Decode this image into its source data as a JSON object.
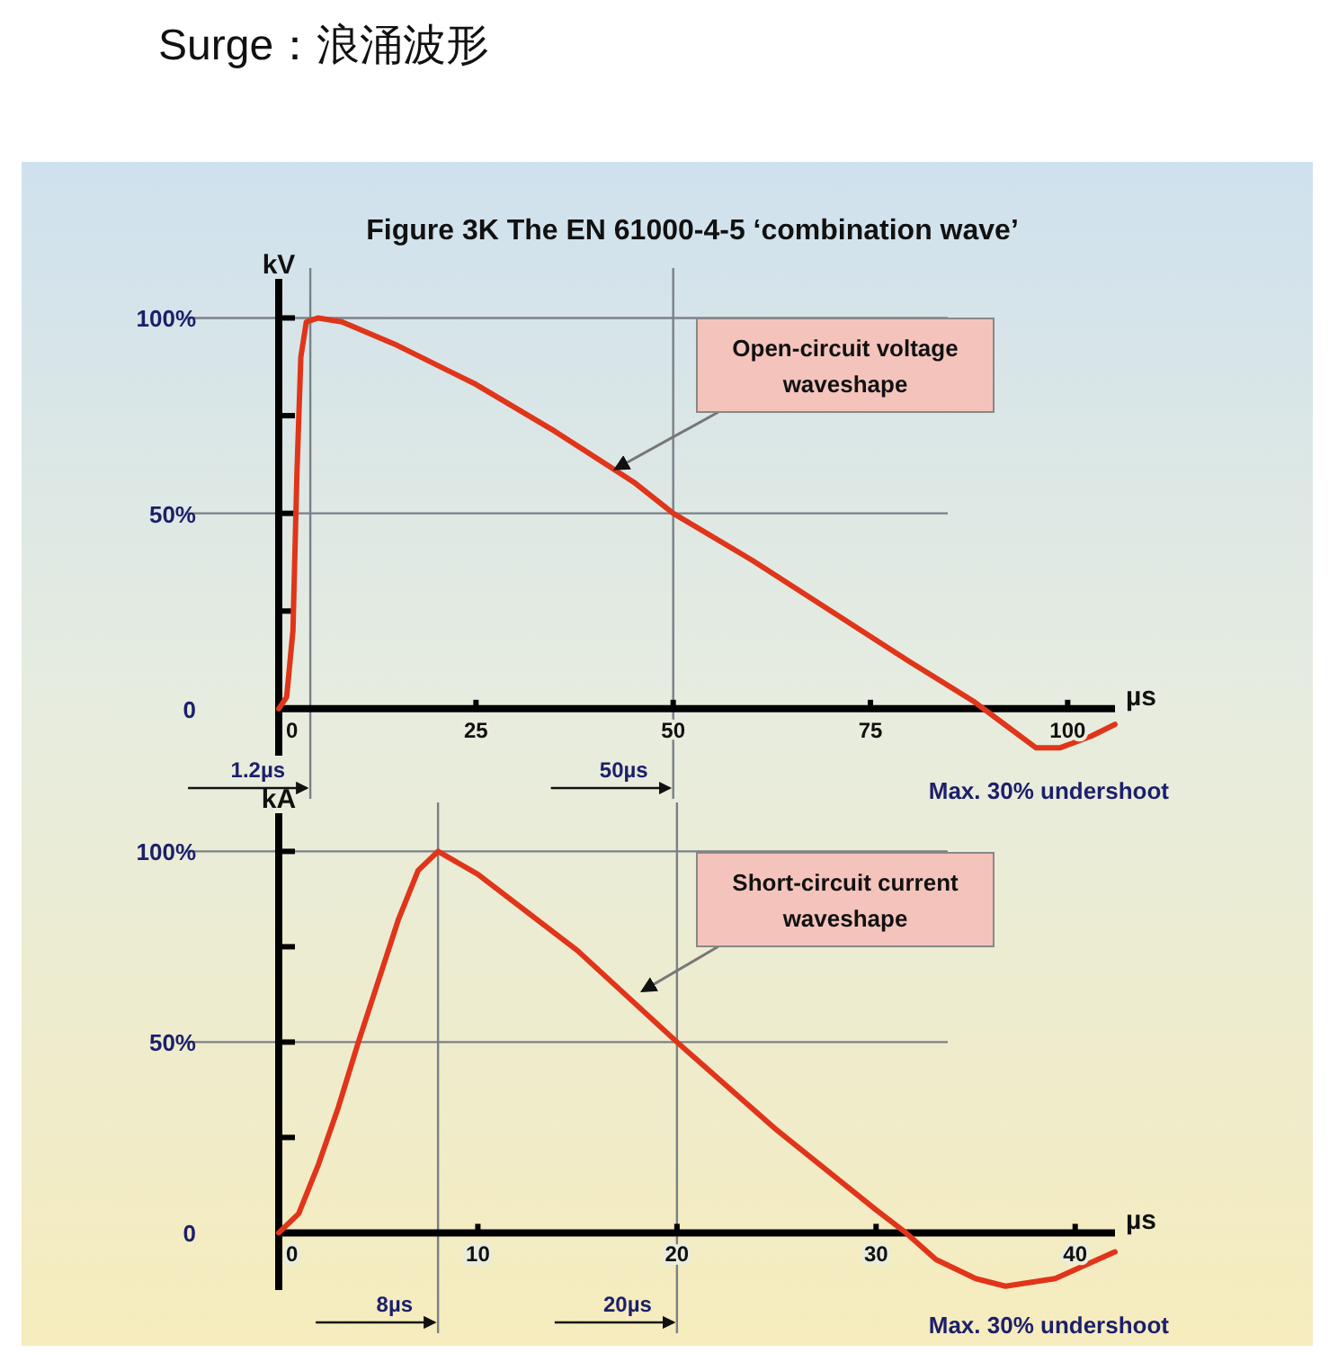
{
  "chart_data": [
    {
      "type": "line",
      "title": "Surge：浪涌波形",
      "subtitle": "Figure 3K    The EN 61000-4-5 ‘combination wave’",
      "ylabel": "kV",
      "xlabel": "µs",
      "xlim": [
        0,
        106
      ],
      "xticks": [
        0,
        25,
        50,
        75,
        100
      ],
      "ylim": [
        -12,
        110
      ],
      "yticks": [
        0,
        {
          "value": 25,
          "label": null
        },
        {
          "value": 50,
          "label": "50%"
        },
        {
          "value": 75,
          "label": null
        },
        {
          "value": 100,
          "label": "100%"
        }
      ],
      "series": [
        {
          "color": "#e0351a",
          "x": [
            0,
            1,
            1.8,
            2.3,
            2.8,
            3.5,
            5,
            8,
            15,
            25,
            35,
            45,
            50,
            60,
            70,
            80,
            88,
            92,
            96,
            99,
            103,
            106
          ],
          "values": [
            0,
            3,
            20,
            60,
            90,
            99,
            100,
            99,
            93,
            83,
            71,
            58,
            50,
            38,
            25,
            12,
            2,
            -4,
            -10,
            -10,
            -7,
            -4
          ]
        }
      ],
      "ref_lines": [
        {
          "axis": "y",
          "value": 100,
          "color": "#7a8088"
        },
        {
          "axis": "y",
          "value": 50,
          "color": "#7a8088"
        },
        {
          "axis": "x",
          "value": 4,
          "label": "1.2µs",
          "color": "#7a8088"
        },
        {
          "axis": "x",
          "value": 50,
          "label": "50µs",
          "color": "#7a8088"
        }
      ],
      "annotations": [
        {
          "text": "Open-circuit voltage\nwaveshape",
          "x": 42,
          "y": 60
        },
        "Max. 30% undershoot"
      ]
    },
    {
      "type": "line",
      "ylabel": "kA",
      "xlabel": "µs",
      "xlim": [
        0,
        42
      ],
      "xticks": [
        0,
        10,
        20,
        30,
        40
      ],
      "ylim": [
        -15,
        110
      ],
      "yticks": [
        0,
        {
          "value": 25,
          "label": null
        },
        {
          "value": 50,
          "label": "50%"
        },
        {
          "value": 75,
          "label": null
        },
        {
          "value": 100,
          "label": "100%"
        }
      ],
      "series": [
        {
          "color": "#e0351a",
          "x": [
            0,
            1,
            2,
            3,
            4,
            5,
            6,
            7,
            8,
            10,
            15,
            20,
            25,
            30,
            31.5,
            33,
            35,
            36.5,
            39,
            42
          ],
          "values": [
            0,
            5,
            18,
            33,
            50,
            66,
            82,
            95,
            100,
            94,
            74,
            50,
            27,
            6,
            0,
            -7,
            -12,
            -14,
            -12,
            -5
          ]
        }
      ],
      "ref_lines": [
        {
          "axis": "y",
          "value": 100,
          "color": "#7a8088"
        },
        {
          "axis": "y",
          "value": 50,
          "color": "#7a8088"
        },
        {
          "axis": "x",
          "value": 8,
          "label": "8µs",
          "color": "#7a8088"
        },
        {
          "axis": "x",
          "value": 20,
          "label": "20µs",
          "color": "#7a8088"
        }
      ],
      "annotations": [
        {
          "text": "Short-circuit current\nwaveshape",
          "x": 18,
          "y": 62
        },
        "Max. 30% undershoot"
      ]
    }
  ]
}
